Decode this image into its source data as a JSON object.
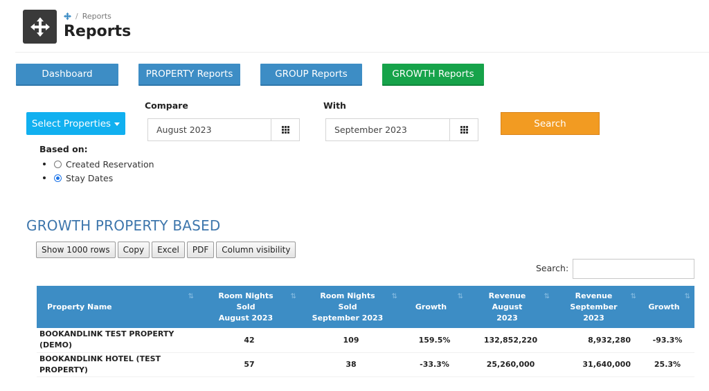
{
  "header": {
    "breadcrumb_current": "Reports",
    "title": "Reports",
    "breadcrumb_icon": "move-arrows-icon"
  },
  "nav": {
    "dashboard": "Dashboard",
    "property_reports": "PROPERTY Reports",
    "group_reports": "GROUP Reports",
    "growth_reports": "GROWTH Reports"
  },
  "filters": {
    "select_properties": "Select Properties",
    "compare_label": "Compare",
    "compare_value": "August 2023",
    "with_label": "With",
    "with_value": "September 2023",
    "search_button": "Search",
    "based_on_label": "Based on:",
    "options": [
      {
        "label": "Created Reservation",
        "selected": false
      },
      {
        "label": "Stay Dates",
        "selected": true
      }
    ]
  },
  "section": {
    "title": "GROWTH PROPERTY BASED",
    "tools": [
      "Show 1000 rows",
      "Copy",
      "Excel",
      "PDF",
      "Column visibility"
    ],
    "search_label": "Search:",
    "search_value": ""
  },
  "table": {
    "columns": [
      [
        "Property Name"
      ],
      [
        "Room Nights",
        "Sold",
        "August 2023"
      ],
      [
        "Room Nights",
        "Sold",
        "September 2023"
      ],
      [
        "Growth"
      ],
      [
        "Revenue",
        "August",
        "2023"
      ],
      [
        "Revenue",
        "September",
        "2023"
      ],
      [
        "Growth"
      ]
    ],
    "rows": [
      {
        "name": [
          "BOOKANDLINK TEST PROPERTY",
          "(DEMO)"
        ],
        "rn_aug": "42",
        "rn_sep": "109",
        "rn_growth": "159.5%",
        "rn_growth_dir": "pos",
        "rev_aug": "132,852,220",
        "rev_sep": "8,932,280",
        "rev_growth": "-93.3%",
        "rev_growth_dir": "neg"
      },
      {
        "name": [
          "BOOKANDLINK HOTEL (TEST",
          "PROPERTY)"
        ],
        "rn_aug": "57",
        "rn_sep": "38",
        "rn_growth": "-33.3%",
        "rn_growth_dir": "neg",
        "rev_aug": "25,260,000",
        "rev_sep": "31,640,000",
        "rev_growth": "25.3%",
        "rev_growth_dir": "pos"
      }
    ]
  },
  "colors": {
    "nav_blue": "#3d8dc5",
    "nav_green": "#16a34a",
    "select_blue": "#11b0f0",
    "search_orange": "#f29b22",
    "title_blue": "#3d76ac",
    "positive": "#17983d",
    "negative": "#e02424"
  }
}
